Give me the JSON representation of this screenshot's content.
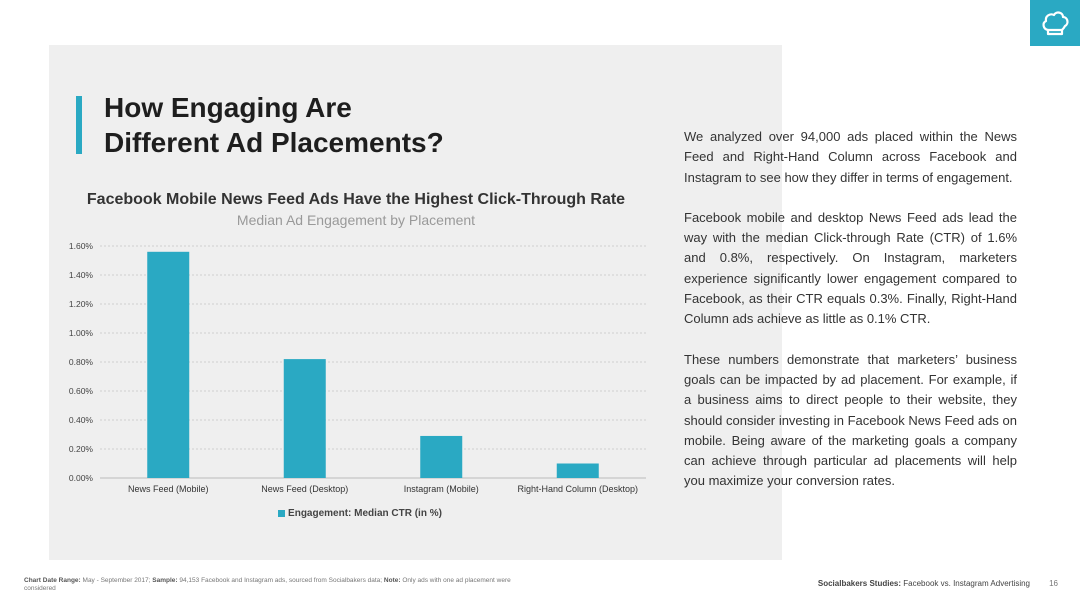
{
  "slide": {
    "heading_line1": "How Engaging Are",
    "heading_line2": "Different Ad Placements?",
    "paragraphs": [
      "We analyzed over 94,000 ads placed within the News Feed and Right-Hand Column across Facebook and Instagram to see how they differ in terms of engagement.",
      "Facebook mobile and desktop News Feed ads lead the way with the median Click-through Rate (CTR) of 1.6% and 0.8%, respectively. On Instagram, marketers experience significantly lower engagement compared to Facebook, as their CTR equals 0.3%. Finally, Right-Hand Column ads achieve as little as 0.1% CTR.",
      "These numbers demonstrate that marketers’ business goals can be impacted by ad placement. For example, if a business aims  to direct people to their website, they should consider investing in Facebook News Feed ads on mobile. Being aware of the marketing goals a company can achieve through particular ad placements will help you maximize your conversion rates."
    ],
    "footnote": {
      "date_label": "Chart Date Range:",
      "date_value": "May - September 2017;",
      "sample_label": "Sample:",
      "sample_value": "94,153 Facebook and Instagram ads, sourced from Socialbakers data;",
      "note_label": "Note:",
      "note_value": "Only ads with one ad placement were considered"
    },
    "footer": {
      "brand": "Socialbakers Studies:",
      "title": "Facebook vs. Instagram Advertising",
      "page": "16"
    },
    "logo_icon": "chef-hat-icon",
    "accent_color": "#2aa9c3"
  },
  "chart_data": {
    "type": "bar",
    "title": "Facebook Mobile News Feed Ads Have the Highest Click-Through Rate",
    "subtitle": "Median Ad Engagement by Placement",
    "categories": [
      "News Feed (Mobile)",
      "News Feed (Desktop)",
      "Instagram (Mobile)",
      "Right-Hand Column (Desktop)"
    ],
    "series": [
      {
        "name": "Engagement: Median CTR (in %)",
        "values": [
          1.56,
          0.82,
          0.29,
          0.1
        ],
        "color": "#2aa9c3"
      }
    ],
    "ylim": [
      0,
      1.6
    ],
    "yticks": [
      "0.00%",
      "0.20%",
      "0.40%",
      "0.60%",
      "0.80%",
      "1.00%",
      "1.20%",
      "1.40%",
      "1.60%"
    ],
    "grid": true,
    "legend_position": "bottom"
  }
}
